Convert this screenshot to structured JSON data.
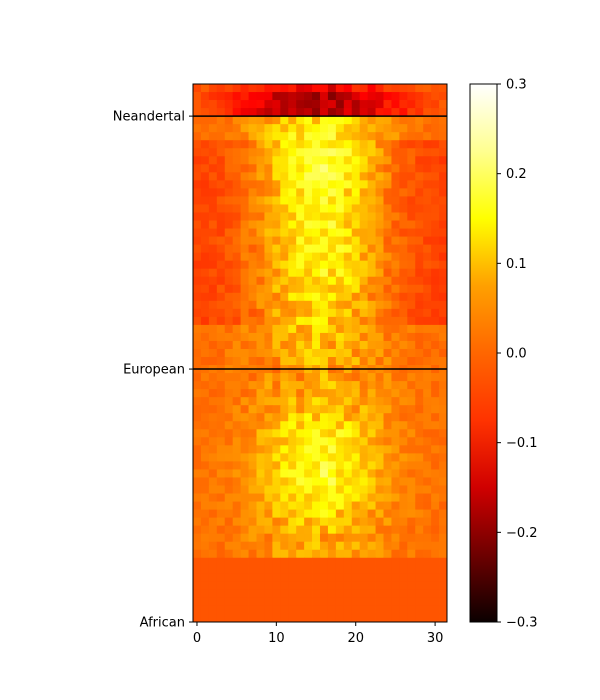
{
  "chart_data": {
    "type": "heatmap",
    "title": "",
    "xlabel": "",
    "ylabel": "",
    "x_range": [
      -0.5,
      31.5
    ],
    "x_ticks": [
      0,
      10,
      20,
      30
    ],
    "n_cols": 32,
    "n_rows": 67,
    "row_labels": [
      {
        "row": 3.5,
        "label": "Neandertal"
      },
      {
        "row": 35.0,
        "label": "European"
      },
      {
        "row": 66.5,
        "label": "African"
      }
    ],
    "separator_rows": [
      3.5,
      35.0
    ],
    "colormap": "hot",
    "value_range": [
      -0.3,
      0.3
    ],
    "colorbar_ticks": [
      0.3,
      0.2,
      0.1,
      0.0,
      -0.1,
      -0.2,
      -0.3
    ],
    "colorbar_tick_labels": [
      "0.3",
      "0.2",
      "0.1",
      "0.0",
      "−0.1",
      "−0.2",
      "−0.3"
    ],
    "regions": [
      {
        "name": "Neandertal",
        "rows": [
          0,
          3
        ],
        "peak_value": -0.17,
        "shape": "negative band centered near column 15"
      },
      {
        "name": "European",
        "rows": [
          4,
          34
        ],
        "peak_value": 0.14,
        "shape": "two positive lobes near rows 8 and 18, centered near column 15"
      },
      {
        "name": "African",
        "rows": [
          35,
          66
        ],
        "peak_value": 0.14,
        "shape": "positive lobe near row 48, centered near column 15, fading to 0 by row 58"
      }
    ]
  }
}
